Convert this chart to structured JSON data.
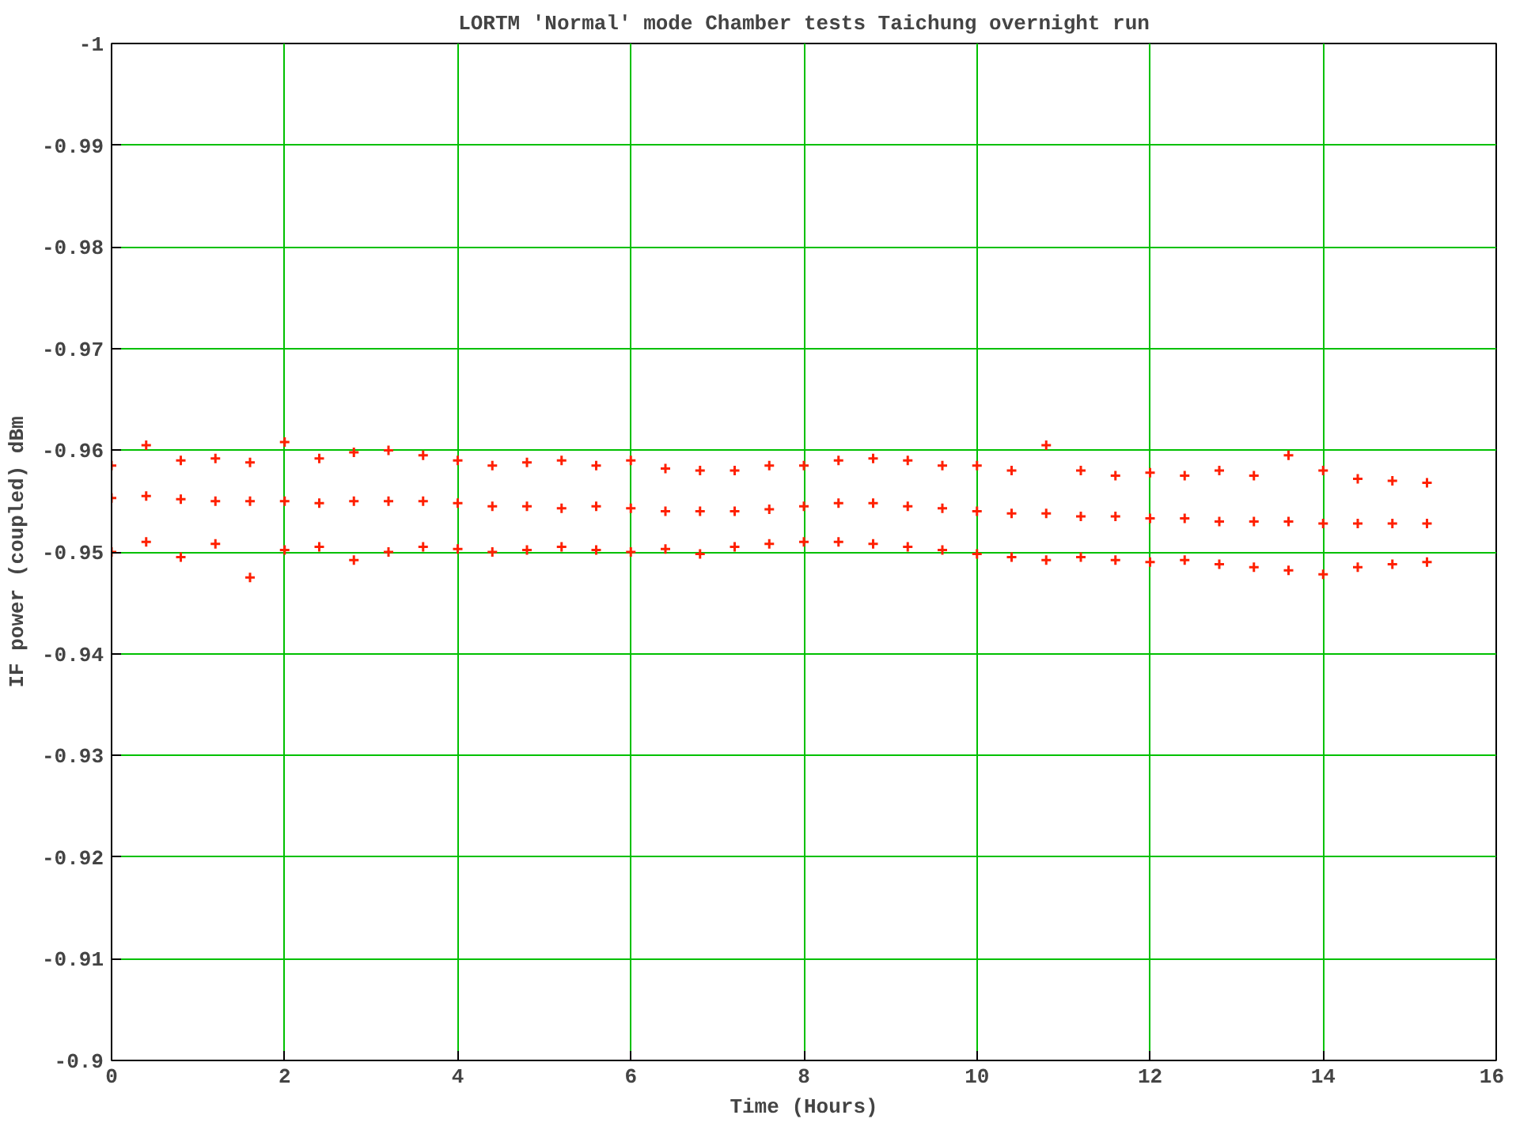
{
  "chart_data": {
    "type": "scatter",
    "title": "LORTM 'Normal' mode Chamber tests Taichung overnight run",
    "xlabel": "Time (Hours)",
    "ylabel": "IF power (coupled) dBm",
    "xlim": [
      0,
      16
    ],
    "xticks": [
      0,
      2,
      4,
      6,
      8,
      10,
      12,
      14,
      16
    ],
    "ylim": [
      -0.9,
      -1
    ],
    "yticks": [
      -1,
      -0.99,
      -0.98,
      -0.97,
      -0.96,
      -0.95,
      -0.94,
      -0.93,
      -0.92,
      -0.91,
      -0.9
    ],
    "grid": true,
    "marker": "cross",
    "series": [
      {
        "color": "#ff2000",
        "x": [
          0,
          0.4,
          0.8,
          1.2,
          1.6,
          2.0,
          2.4,
          2.8,
          3.2,
          3.6,
          4.0,
          4.4,
          4.8,
          5.2,
          5.6,
          6.0,
          6.4,
          6.8,
          7.2,
          7.6,
          8.0,
          8.4,
          8.8,
          9.2,
          9.6,
          10.0,
          10.4,
          10.8,
          11.2,
          11.6,
          12.0,
          12.4,
          12.8,
          13.2,
          13.6,
          14.0,
          14.4,
          14.8,
          15.2,
          0,
          0.4,
          0.8,
          1.2,
          1.6,
          2.0,
          2.4,
          2.8,
          3.2,
          3.6,
          4.0,
          4.4,
          4.8,
          5.2,
          5.6,
          6.0,
          6.4,
          6.8,
          7.2,
          7.6,
          8.0,
          8.4,
          8.8,
          9.2,
          9.6,
          10.0,
          10.4,
          10.8,
          11.2,
          11.6,
          12.0,
          12.4,
          12.8,
          13.2,
          13.6,
          14.0,
          14.4,
          14.8,
          15.2,
          0,
          0.4,
          0.8,
          1.2,
          1.6,
          2.0,
          2.4,
          2.8,
          3.2,
          3.6,
          4.0,
          4.4,
          4.8,
          5.2,
          5.6,
          6.0,
          6.4,
          6.8,
          7.2,
          7.6,
          8.0,
          8.4,
          8.8,
          9.2,
          9.6,
          10.0,
          10.4,
          10.8,
          11.2,
          11.6,
          12.0,
          12.4,
          12.8,
          13.2,
          13.6,
          14.0,
          14.4,
          14.8,
          15.2
        ],
        "values": [
          -0.9585,
          -0.9605,
          -0.959,
          -0.9592,
          -0.9588,
          -0.9608,
          -0.9592,
          -0.9598,
          -0.96,
          -0.9595,
          -0.959,
          -0.9585,
          -0.9588,
          -0.959,
          -0.9585,
          -0.959,
          -0.9582,
          -0.958,
          -0.958,
          -0.9585,
          -0.9585,
          -0.959,
          -0.9592,
          -0.959,
          -0.9585,
          -0.9585,
          -0.958,
          -0.9605,
          -0.958,
          -0.9575,
          -0.9578,
          -0.9575,
          -0.958,
          -0.9575,
          -0.9595,
          -0.958,
          -0.9572,
          -0.957,
          -0.9568,
          -0.9553,
          -0.9555,
          -0.9552,
          -0.955,
          -0.955,
          -0.955,
          -0.9548,
          -0.955,
          -0.955,
          -0.955,
          -0.9548,
          -0.9545,
          -0.9545,
          -0.9543,
          -0.9545,
          -0.9543,
          -0.954,
          -0.954,
          -0.954,
          -0.9542,
          -0.9545,
          -0.9548,
          -0.9548,
          -0.9545,
          -0.9543,
          -0.954,
          -0.9538,
          -0.9538,
          -0.9535,
          -0.9535,
          -0.9533,
          -0.9533,
          -0.953,
          -0.953,
          -0.953,
          -0.9528,
          -0.9528,
          -0.9528,
          -0.9528,
          -0.95,
          -0.951,
          -0.9495,
          -0.9508,
          -0.9475,
          -0.9502,
          -0.9505,
          -0.9492,
          -0.95,
          -0.9505,
          -0.9503,
          -0.95,
          -0.9502,
          -0.9505,
          -0.9502,
          -0.95,
          -0.9503,
          -0.9498,
          -0.9505,
          -0.9508,
          -0.951,
          -0.951,
          -0.9508,
          -0.9505,
          -0.9502,
          -0.9498,
          -0.9495,
          -0.9492,
          -0.9495,
          -0.9492,
          -0.949,
          -0.9492,
          -0.9488,
          -0.9485,
          -0.9482,
          -0.9478,
          -0.9485,
          -0.9488,
          -0.949
        ]
      }
    ]
  }
}
